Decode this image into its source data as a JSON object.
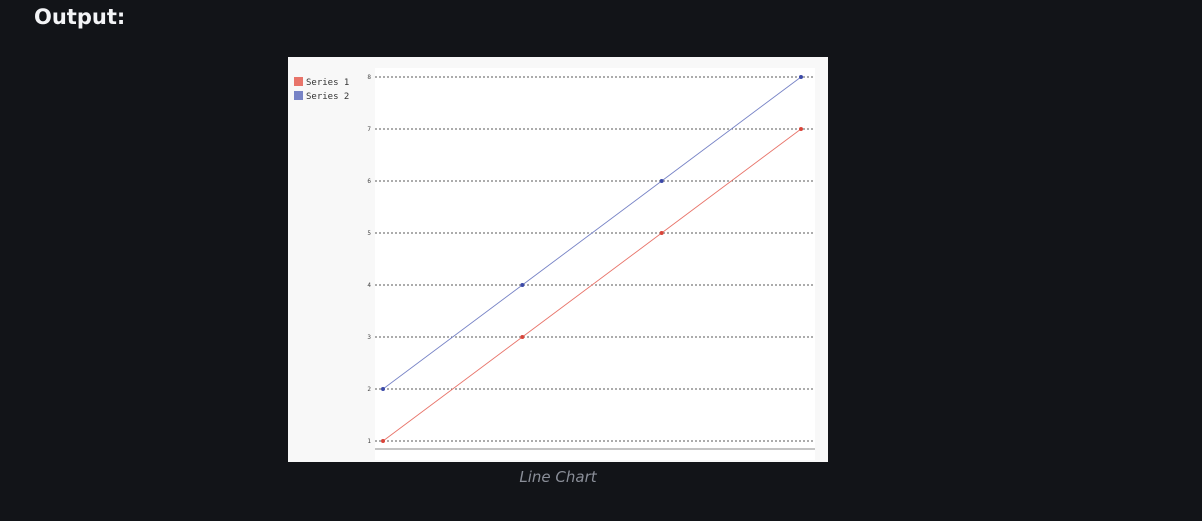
{
  "heading": "Output:",
  "caption": "Line Chart",
  "colors": {
    "series_1": "#e8746a",
    "series_2": "#7783c6",
    "series_1_marker": "#d9453a",
    "series_2_marker": "#3c4aa8",
    "page_background": "#121418",
    "card_background": "#f8f8f8"
  },
  "chart_data": {
    "type": "line",
    "x": [
      0,
      1,
      2,
      3
    ],
    "series": [
      {
        "name": "Series 1",
        "values": [
          1,
          3,
          5,
          7
        ]
      },
      {
        "name": "Series 2",
        "values": [
          2,
          4,
          6,
          8
        ]
      }
    ],
    "y_ticks": [
      1,
      2,
      3,
      4,
      5,
      6,
      7,
      8
    ],
    "ylim": [
      1,
      8
    ],
    "grid": "horizontal dashed",
    "legend_position": "top-left",
    "x_tick_labels": "none"
  }
}
